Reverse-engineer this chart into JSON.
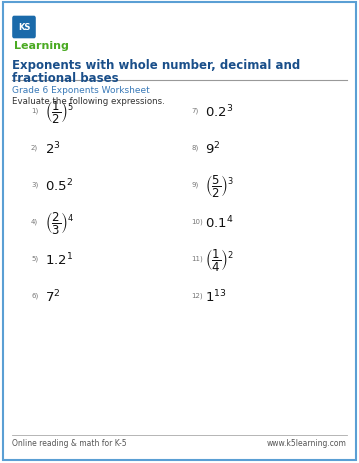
{
  "title_line1": "Exponents with whole number, decimal and",
  "title_line2": "fractional bases",
  "subtitle": "Grade 6 Exponents Worksheet",
  "instruction": "Evaluate the following expressions.",
  "title_color": "#1a4f8a",
  "subtitle_color": "#3a7ab8",
  "border_color": "#5a9fd4",
  "bg_color": "#ffffff",
  "footer_left": "Online reading & math for K-5",
  "footer_right": "www.k5learning.com",
  "problems": [
    {
      "num": "1)",
      "type": "fraction_exp",
      "num_val": "1",
      "den_val": "2",
      "exp": "5",
      "col": 0,
      "row": 0
    },
    {
      "num": "2)",
      "type": "simple_exp",
      "base": "2",
      "exp": "3",
      "col": 0,
      "row": 1
    },
    {
      "num": "3)",
      "type": "simple_exp",
      "base": "0.5",
      "exp": "2",
      "col": 0,
      "row": 2
    },
    {
      "num": "4)",
      "type": "fraction_exp",
      "num_val": "2",
      "den_val": "3",
      "exp": "4",
      "col": 0,
      "row": 3
    },
    {
      "num": "5)",
      "type": "simple_exp",
      "base": "1.2",
      "exp": "1",
      "col": 0,
      "row": 4
    },
    {
      "num": "6)",
      "type": "simple_exp",
      "base": "7",
      "exp": "2",
      "col": 0,
      "row": 5
    },
    {
      "num": "7)",
      "type": "simple_exp",
      "base": "0.2",
      "exp": "3",
      "col": 1,
      "row": 0
    },
    {
      "num": "8)",
      "type": "simple_exp",
      "base": "9",
      "exp": "2",
      "col": 1,
      "row": 1
    },
    {
      "num": "9)",
      "type": "fraction_exp",
      "num_val": "5",
      "den_val": "2",
      "exp": "3",
      "col": 1,
      "row": 2
    },
    {
      "num": "10)",
      "type": "simple_exp",
      "base": "0.1",
      "exp": "4",
      "col": 1,
      "row": 3
    },
    {
      "num": "11)",
      "type": "fraction_exp",
      "num_val": "1",
      "den_val": "4",
      "exp": "2",
      "col": 1,
      "row": 4
    },
    {
      "num": "12)",
      "type": "simple_exp",
      "base": "1",
      "exp": "13",
      "col": 1,
      "row": 5
    }
  ]
}
